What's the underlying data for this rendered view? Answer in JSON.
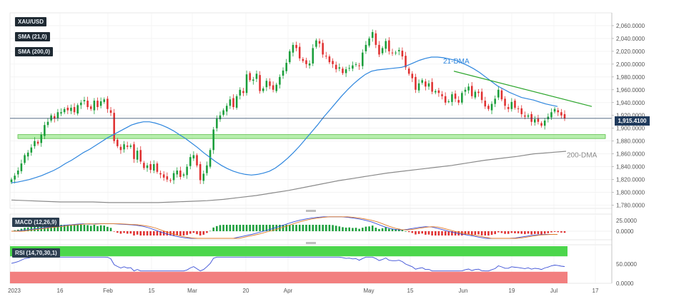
{
  "symbol": "XAU/USD",
  "indicators": [
    "SMA (21,0)",
    "SMA (200,0)"
  ],
  "macd_label": "MACD (12,26,9)",
  "rsi_label": "RSI (14,70,30,1)",
  "last_price_label": "1,915.4100",
  "colors": {
    "up": "#1a9e3a",
    "down": "#e03030",
    "sma21": "#2e86de",
    "sma200": "#8a8a8a",
    "trend": "#2ba52b",
    "support": "#7be06a",
    "rsi_over": "#4cd64c",
    "rsi_under": "#f27f7f",
    "macd_line": "#3b4fd6",
    "macd_signal": "#e07b2a",
    "rsi_line": "#3b4fd6",
    "last_price_line": "#1f3a5c"
  },
  "chart_data": {
    "type": "candlestick",
    "main_pane": {
      "y_ticks": [
        "2,060.0000",
        "2,040.0000",
        "2,020.0000",
        "2,000.0000",
        "1,980.0000",
        "1,960.0000",
        "1,940.0000",
        "1,920.0000",
        "1,900.0000",
        "1,880.0000",
        "1,860.0000",
        "1,840.0000",
        "1,820.0000",
        "1,800.0000",
        "1,780.0000"
      ],
      "ylim": [
        1775,
        2080
      ],
      "x_ticks": [
        "2023",
        "16",
        "Feb",
        "15",
        "Mar",
        "20",
        "Apr",
        "May",
        "15",
        "Jun",
        "19",
        "Jul",
        "17"
      ],
      "annotations": [
        "21-DMA",
        "200-DMA"
      ],
      "last_price": 1915.41,
      "support_zone": [
        1885,
        1889
      ],
      "trendline": {
        "from": [
          "late May",
          1989
        ],
        "to": [
          "early Jul",
          1934
        ]
      },
      "candles_close": [
        1820,
        1826,
        1834,
        1845,
        1858,
        1862,
        1870,
        1880,
        1876,
        1890,
        1905,
        1910,
        1920,
        1915,
        1925,
        1925,
        1930,
        1928,
        1932,
        1925,
        1936,
        1940,
        1944,
        1933,
        1930,
        1943,
        1933,
        1942,
        1945,
        1930,
        1924,
        1880,
        1872,
        1866,
        1875,
        1871,
        1873,
        1852,
        1865,
        1848,
        1838,
        1842,
        1835,
        1844,
        1832,
        1828,
        1823,
        1820,
        1818,
        1830,
        1834,
        1824,
        1828,
        1840,
        1855,
        1858,
        1842,
        1819,
        1829,
        1842,
        1866,
        1898,
        1915,
        1920,
        1928,
        1935,
        1945,
        1933,
        1950,
        1960,
        1955,
        1984,
        1975,
        1976,
        1985,
        1958,
        1962,
        1974,
        1966,
        1960,
        1968,
        1980,
        1990,
        2002,
        2020,
        2030,
        2025,
        2009,
        2005,
        2000,
        2001,
        2025,
        2037,
        2032,
        2015,
        2012,
        2003,
        2000,
        1992,
        1995,
        1986,
        1992,
        1994,
        1998,
        2000,
        1997,
        2018,
        2030,
        2040,
        2050,
        2030,
        2015,
        2025,
        2036,
        2020,
        2017,
        2018,
        2022,
        2012,
        1995,
        1985,
        1978,
        1960,
        1970,
        1975,
        1965,
        1970,
        1957,
        1958,
        1955,
        1950,
        1940,
        1942,
        1953,
        1946,
        1940,
        1955,
        1960,
        1965,
        1950,
        1957,
        1955,
        1944,
        1934,
        1930,
        1938,
        1946,
        1960,
        1945,
        1935,
        1930,
        1941,
        1932,
        1930,
        1922,
        1918,
        1920,
        1910,
        1914,
        1910,
        1904,
        1912,
        1918,
        1925,
        1930,
        1925,
        1920,
        1915.41
      ],
      "sma21": [
        1815,
        1816,
        1818,
        1820,
        1823,
        1826,
        1830,
        1834,
        1839,
        1845,
        1850,
        1856,
        1862,
        1867,
        1873,
        1879,
        1885,
        1890,
        1895,
        1900,
        1905,
        1908,
        1910,
        1910,
        1908,
        1905,
        1901,
        1896,
        1890,
        1884,
        1877,
        1870,
        1862,
        1855,
        1848,
        1842,
        1837,
        1833,
        1830,
        1828,
        1827,
        1828,
        1830,
        1833,
        1838,
        1845,
        1853,
        1862,
        1872,
        1883,
        1894,
        1905,
        1917,
        1928,
        1939,
        1950,
        1960,
        1969,
        1977,
        1984,
        1989,
        1991,
        1992,
        1993,
        1994,
        1995,
        1998,
        2002,
        2006,
        2009,
        2011,
        2011,
        2010,
        2008,
        2006,
        2002,
        1998,
        1993,
        1987,
        1980,
        1973,
        1966,
        1961,
        1956,
        1952,
        1948,
        1946,
        1944,
        1941,
        1938,
        1936,
        1934
      ],
      "sma200": [
        1788,
        1787,
        1786,
        1785,
        1785,
        1785,
        1784,
        1784,
        1784,
        1784,
        1785,
        1786,
        1787,
        1789,
        1792,
        1795,
        1799,
        1803,
        1808,
        1813,
        1818,
        1822,
        1826,
        1830,
        1833,
        1836,
        1839,
        1842,
        1846,
        1850,
        1853,
        1856,
        1860,
        1862,
        1864
      ]
    },
    "macd_pane": {
      "y_ticks": [
        "25.0000",
        "0.0000"
      ],
      "series": [
        {
          "name": "MACD"
        },
        {
          "name": "Signal"
        },
        {
          "name": "Histogram"
        }
      ]
    },
    "rsi_pane": {
      "y_ticks": [
        "50.0000",
        "0.0000"
      ],
      "overbought": 70,
      "oversold": 30
    }
  }
}
